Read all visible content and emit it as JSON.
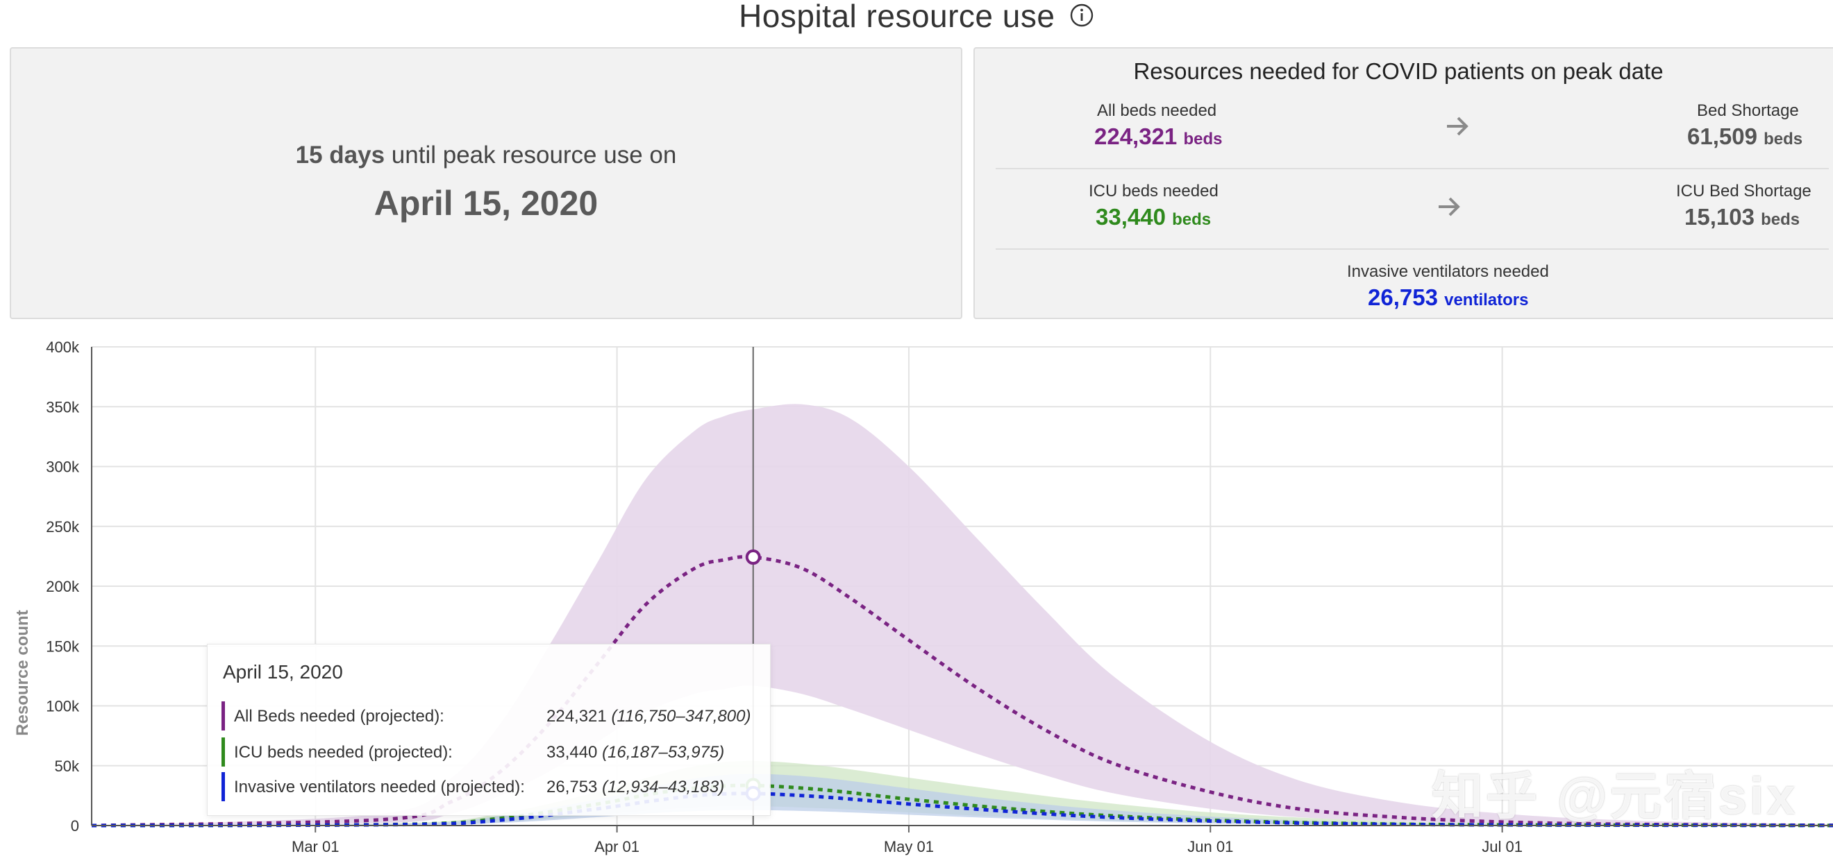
{
  "header": {
    "title": "Hospital resource use"
  },
  "peak": {
    "days_number": "15 days",
    "days_suffix": " until peak resource use on",
    "date": "April 15, 2020"
  },
  "resources": {
    "heading": "Resources needed for COVID patients on peak date",
    "all_beds_label": "All beds needed",
    "all_beds_value": "224,321",
    "all_beds_unit": "beds",
    "bed_shortage_label": "Bed Shortage",
    "bed_shortage_value": "61,509",
    "bed_shortage_unit": "beds",
    "icu_beds_label": "ICU beds needed",
    "icu_beds_value": "33,440",
    "icu_beds_unit": "beds",
    "icu_shortage_label": "ICU Bed Shortage",
    "icu_shortage_value": "15,103",
    "icu_shortage_unit": "beds",
    "vent_label": "Invasive ventilators needed",
    "vent_value": "26,753",
    "vent_unit": "ventilators"
  },
  "colors": {
    "all_beds": "#7a2383",
    "icu": "#2f8a1d",
    "vent": "#1024d6",
    "all_beds_band": "#e6d6ea",
    "icu_band": "#cfe5c4",
    "vent_band": "#bccde8"
  },
  "tooltip": {
    "date": "April 15, 2020",
    "rows": [
      {
        "label": "All Beds needed (projected):",
        "value": "224,321",
        "range": "(116,750–347,800)"
      },
      {
        "label": "ICU beds needed (projected):",
        "value": "33,440",
        "range": "(16,187–53,975)"
      },
      {
        "label": "Invasive ventilators needed (projected):",
        "value": "26,753",
        "range": "(12,934–43,183)"
      }
    ]
  },
  "watermark": "知乎 @元宿six",
  "chart_data": {
    "type": "line",
    "ylabel": "Resource count",
    "ylim": [
      0,
      400000
    ],
    "y_ticks": [
      0,
      50000,
      100000,
      150000,
      200000,
      250000,
      300000,
      350000,
      400000
    ],
    "y_tick_labels": [
      "0",
      "50k",
      "100k",
      "150k",
      "200k",
      "250k",
      "300k",
      "350k",
      "400k"
    ],
    "x_ticks": [
      "2020-03-01",
      "2020-04-01",
      "2020-05-01",
      "2020-06-01",
      "2020-07-01"
    ],
    "x_tick_labels": [
      "Mar 01",
      "Apr 01",
      "May 01",
      "Jun 01",
      "Jul 01"
    ],
    "xlim": [
      "2020-02-07",
      "2020-08-04"
    ],
    "grid": true,
    "marker_date": "2020-04-15",
    "series": [
      {
        "name": "All Beds needed (projected)",
        "color": "#7a2383",
        "x": [
          "2020-02-07",
          "2020-03-08",
          "2020-03-15",
          "2020-03-20",
          "2020-03-25",
          "2020-03-30",
          "2020-04-04",
          "2020-04-09",
          "2020-04-12",
          "2020-04-15",
          "2020-04-20",
          "2020-04-25",
          "2020-05-01",
          "2020-05-08",
          "2020-05-15",
          "2020-05-22",
          "2020-06-01",
          "2020-06-10",
          "2020-06-20",
          "2020-07-01",
          "2020-07-15",
          "2020-08-04"
        ],
        "y": [
          0,
          5000,
          20000,
          45000,
          85000,
          135000,
          185000,
          215000,
          222000,
          224321,
          215000,
          190000,
          155000,
          115000,
          80000,
          52000,
          28000,
          14000,
          7000,
          3000,
          1000,
          200
        ],
        "lower": [
          0,
          2000,
          10000,
          25000,
          45000,
          70000,
          95000,
          110000,
          114000,
          116750,
          110000,
          97000,
          80000,
          60000,
          42000,
          27000,
          14000,
          7000,
          3500,
          1500,
          500,
          100
        ],
        "upper": [
          0,
          10000,
          40000,
          85000,
          150000,
          220000,
          290000,
          330000,
          342000,
          347800,
          352000,
          340000,
          300000,
          240000,
          180000,
          125000,
          70000,
          38000,
          20000,
          10000,
          4000,
          1000
        ]
      },
      {
        "name": "ICU beds needed (projected)",
        "color": "#2f8a1d",
        "x": [
          "2020-02-07",
          "2020-03-10",
          "2020-03-20",
          "2020-03-30",
          "2020-04-05",
          "2020-04-10",
          "2020-04-15",
          "2020-04-22",
          "2020-05-01",
          "2020-05-10",
          "2020-05-20",
          "2020-06-01",
          "2020-06-15",
          "2020-07-01",
          "2020-08-04"
        ],
        "y": [
          0,
          1000,
          6000,
          18000,
          27000,
          32000,
          33440,
          30000,
          22000,
          15000,
          9000,
          4500,
          1800,
          600,
          100
        ],
        "lower": [
          0,
          500,
          3000,
          9000,
          13000,
          15500,
          16187,
          14500,
          11000,
          7500,
          4500,
          2200,
          900,
          300,
          50
        ],
        "upper": [
          0,
          2000,
          10000,
          28000,
          42000,
          51000,
          53975,
          50000,
          40000,
          30000,
          20000,
          11000,
          5000,
          1500,
          300
        ]
      },
      {
        "name": "Invasive ventilators needed (projected)",
        "color": "#1024d6",
        "x": [
          "2020-02-07",
          "2020-03-10",
          "2020-03-20",
          "2020-03-30",
          "2020-04-05",
          "2020-04-10",
          "2020-04-15",
          "2020-04-22",
          "2020-05-01",
          "2020-05-10",
          "2020-05-20",
          "2020-06-01",
          "2020-06-15",
          "2020-07-01",
          "2020-08-04"
        ],
        "y": [
          0,
          800,
          4500,
          14000,
          21000,
          25500,
          26753,
          24000,
          18000,
          12500,
          7500,
          3800,
          1500,
          500,
          100
        ],
        "lower": [
          0,
          400,
          2200,
          7000,
          10500,
          12300,
          12934,
          11800,
          9000,
          6200,
          3700,
          1800,
          700,
          250,
          50
        ],
        "upper": [
          0,
          1600,
          8000,
          22000,
          33000,
          40500,
          43183,
          40000,
          31000,
          22000,
          14000,
          7500,
          3000,
          1000,
          200
        ]
      }
    ]
  }
}
